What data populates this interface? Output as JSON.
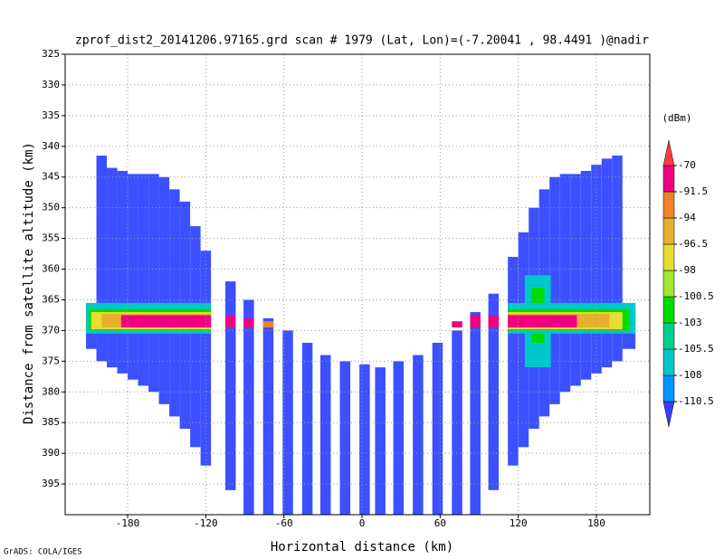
{
  "chart_data": {
    "type": "swath",
    "title": "zprof_dist2_20141206.97165.grd  scan # 1979  (Lat, Lon)=(-7.20041 , 98.4491 )@nadir",
    "xlabel": "Horizontal distance (km)",
    "ylabel": "Distance from satellite altitude (km)",
    "footer": "GrADS: COLA/IGES",
    "xlim": [
      -228,
      221
    ],
    "ylim": [
      325,
      400
    ],
    "y_inverted": true,
    "grid": true,
    "xticks": [
      -180,
      -120,
      -60,
      0,
      60,
      120,
      180
    ],
    "yticks": [
      325,
      330,
      335,
      340,
      345,
      350,
      355,
      360,
      365,
      370,
      375,
      380,
      385,
      390,
      395
    ],
    "swath_color": "#3c50ff",
    "columns": [
      [
        -212,
        -204,
        366,
        373
      ],
      [
        -204,
        -196,
        341.5,
        375
      ],
      [
        -196,
        -188,
        343.5,
        376
      ],
      [
        -188,
        -180,
        344,
        377
      ],
      [
        -180,
        -172,
        344.5,
        378
      ],
      [
        -172,
        -164,
        344.5,
        379
      ],
      [
        -164,
        -156,
        344.5,
        380
      ],
      [
        -156,
        -148,
        345,
        382
      ],
      [
        -148,
        -140,
        347,
        384
      ],
      [
        -140,
        -132,
        349,
        386
      ],
      [
        -132,
        -124,
        353,
        389
      ],
      [
        -124,
        -116,
        357,
        392
      ],
      [
        -105,
        -97,
        362,
        396
      ],
      [
        -91,
        -83,
        365,
        400
      ],
      [
        -76,
        -68,
        368,
        400
      ],
      [
        -61,
        -53,
        370,
        400
      ],
      [
        -46,
        -38,
        372,
        400
      ],
      [
        -32,
        -24,
        374,
        400
      ],
      [
        -17,
        -9,
        375,
        400
      ],
      [
        -2,
        6,
        375.5,
        400
      ],
      [
        10,
        18,
        376,
        400
      ],
      [
        24,
        32,
        375,
        400
      ],
      [
        39,
        47,
        374,
        400
      ],
      [
        54,
        62,
        372,
        400
      ],
      [
        69,
        77,
        370,
        400
      ],
      [
        83,
        91,
        367,
        400
      ],
      [
        97,
        105,
        364,
        396
      ],
      [
        112,
        120,
        358,
        392
      ],
      [
        120,
        128,
        354,
        389
      ],
      [
        128,
        136,
        350,
        386
      ],
      [
        136,
        144,
        347,
        384
      ],
      [
        144,
        152,
        345,
        382
      ],
      [
        152,
        160,
        344.5,
        380
      ],
      [
        160,
        168,
        344.5,
        379
      ],
      [
        168,
        176,
        344,
        378
      ],
      [
        176,
        184,
        343,
        377
      ],
      [
        184,
        192,
        342,
        376
      ],
      [
        192,
        200,
        341.5,
        375
      ],
      [
        200,
        210,
        366,
        373
      ]
    ],
    "band_cells": [
      [
        -212,
        -116,
        365.5,
        370.5,
        -107
      ],
      [
        -210,
        -116,
        366.5,
        370,
        -101
      ],
      [
        -208,
        -116,
        367,
        369.8,
        -97
      ],
      [
        -200,
        -116,
        367.3,
        369.5,
        -95
      ],
      [
        -185,
        -116,
        367.5,
        369.5,
        -85
      ],
      [
        -105,
        -97,
        367.5,
        369.5,
        -85
      ],
      [
        -91,
        -83,
        368,
        369.5,
        -85
      ],
      [
        -76,
        -68,
        368.5,
        369.5,
        -93
      ],
      [
        69,
        77,
        368.5,
        369.5,
        -85
      ],
      [
        83,
        91,
        367.5,
        369.5,
        -85
      ],
      [
        97,
        105,
        367.5,
        369.5,
        -85
      ],
      [
        125,
        145,
        361,
        376,
        -107
      ],
      [
        130,
        140,
        363,
        372,
        -102
      ],
      [
        112,
        210,
        365.5,
        370.5,
        -107
      ],
      [
        112,
        205,
        366.5,
        370,
        -101
      ],
      [
        112,
        200,
        367,
        369.8,
        -97
      ],
      [
        112,
        190,
        367.3,
        369.5,
        -95
      ],
      [
        112,
        165,
        367.5,
        369.5,
        -85
      ]
    ],
    "colorbar": {
      "unit": "(dBm)",
      "levels": [
        -110.5,
        -108,
        -105.5,
        -103,
        -100.5,
        -98,
        -96.5,
        -94,
        -91.5,
        -70
      ],
      "colors": [
        "#3c3cff",
        "#0096ff",
        "#00c8c8",
        "#00d28c",
        "#00dc00",
        "#a0e632",
        "#e6dc32",
        "#e6af2d",
        "#f08228",
        "#f00082",
        "#fa3c3c"
      ]
    }
  }
}
